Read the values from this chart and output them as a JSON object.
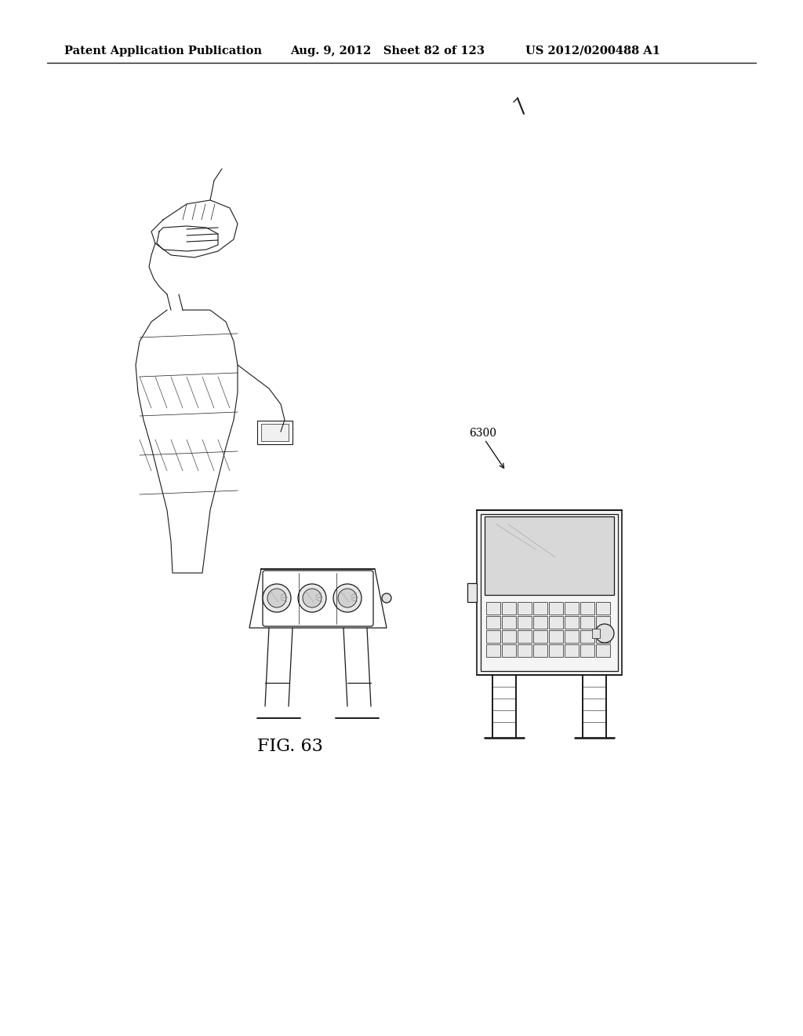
{
  "title": "",
  "header_left": "Patent Application Publication",
  "header_mid": "Aug. 9, 2012   Sheet 82 of 123",
  "header_right": "US 2012/0200488 A1",
  "caption": "FIG. 63",
  "label_6300": "6300",
  "background_color": "#ffffff",
  "text_color": "#000000",
  "line_color": "#1a1a1a",
  "header_fontsize": 10.5,
  "caption_fontsize": 16
}
